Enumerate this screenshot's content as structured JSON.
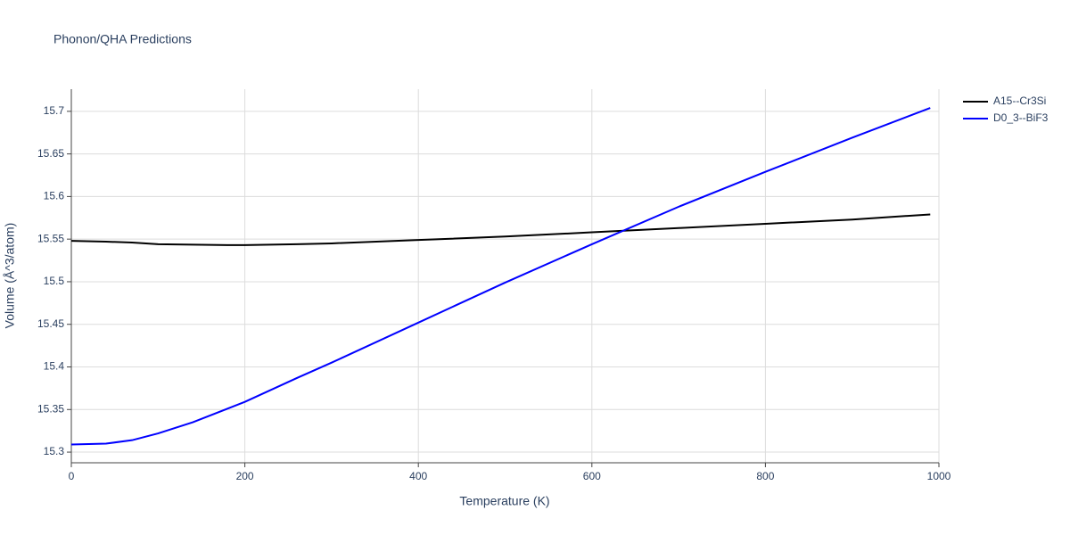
{
  "chart_data": {
    "type": "line",
    "title": "Phonon/QHA Predictions",
    "x_label": "Temperature (K)",
    "y_label": "Volume (Å^3/atom)",
    "x": [
      0,
      40,
      70,
      100,
      140,
      180,
      200,
      260,
      300,
      400,
      500,
      600,
      700,
      800,
      900,
      990
    ],
    "series": [
      {
        "name": "A15--Cr3Si",
        "color": "#000000",
        "values": [
          15.548,
          15.547,
          15.546,
          15.544,
          15.5435,
          15.543,
          15.543,
          15.544,
          15.545,
          15.549,
          15.553,
          15.558,
          15.563,
          15.568,
          15.573,
          15.579
        ]
      },
      {
        "name": "D0_3--BiF3",
        "color": "#0000ff",
        "values": [
          15.309,
          15.31,
          15.314,
          15.322,
          15.335,
          15.351,
          15.359,
          15.387,
          15.405,
          15.452,
          15.499,
          15.544,
          15.588,
          15.629,
          15.669,
          15.704
        ]
      }
    ],
    "xlim": [
      0,
      1000
    ],
    "xticks": [
      0,
      200,
      400,
      600,
      800,
      1000
    ],
    "ylim": [
      15.2875,
      15.726
    ],
    "yticks": [
      15.3,
      15.35,
      15.4,
      15.45,
      15.5,
      15.55,
      15.6,
      15.65,
      15.7
    ],
    "grid": true,
    "legend": "top-right"
  }
}
